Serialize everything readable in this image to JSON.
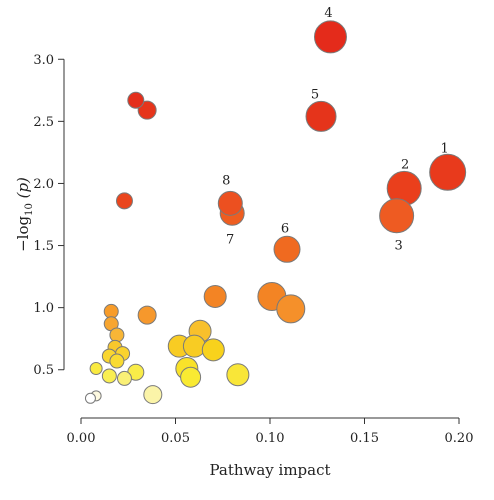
{
  "chart_data": {
    "type": "scatter",
    "title": "",
    "xlabel": "Pathway impact",
    "ylabel": {
      "prefix": "−log",
      "subscript": "10",
      "suffix": " (p)"
    },
    "xlim": [
      0.0,
      0.2
    ],
    "ylim": [
      0.2,
      3.3
    ],
    "xticks": [
      "0.00",
      "0.05",
      "0.10",
      "0.15",
      "0.20"
    ],
    "yticks": [
      "0.5",
      "1.0",
      "1.5",
      "2.0",
      "2.5",
      "3.0"
    ],
    "grid": false,
    "encoding": "Bubble color shades from pale yellow (low -log10 p) to red (high -log10 p); bubble size reflects pathway impact.",
    "points": [
      {
        "x": 0.194,
        "y": 2.09,
        "size": 18,
        "color": "#e83a1c",
        "label": "1"
      },
      {
        "x": 0.171,
        "y": 1.96,
        "size": 17,
        "color": "#ea3f1c",
        "label": "2"
      },
      {
        "x": 0.167,
        "y": 1.74,
        "size": 17,
        "color": "#ee5b22",
        "label": "3"
      },
      {
        "x": 0.132,
        "y": 3.18,
        "size": 16,
        "color": "#e42b1b",
        "label": "4"
      },
      {
        "x": 0.127,
        "y": 2.54,
        "size": 15,
        "color": "#e5341b",
        "label": "5"
      },
      {
        "x": 0.109,
        "y": 1.47,
        "size": 13,
        "color": "#f06a20",
        "label": "6"
      },
      {
        "x": 0.08,
        "y": 1.76,
        "size": 12,
        "color": "#ee5d20",
        "label": "7"
      },
      {
        "x": 0.079,
        "y": 1.84,
        "size": 12,
        "color": "#ec5020",
        "label": "8"
      },
      {
        "x": 0.029,
        "y": 2.67,
        "size": 8,
        "color": "#e42e1b"
      },
      {
        "x": 0.035,
        "y": 2.59,
        "size": 9,
        "color": "#e6351b"
      },
      {
        "x": 0.023,
        "y": 1.86,
        "size": 8,
        "color": "#ea451d"
      },
      {
        "x": 0.101,
        "y": 1.09,
        "size": 14,
        "color": "#f38424"
      },
      {
        "x": 0.111,
        "y": 0.99,
        "size": 14,
        "color": "#f5902a"
      },
      {
        "x": 0.071,
        "y": 1.09,
        "size": 11,
        "color": "#f38424"
      },
      {
        "x": 0.035,
        "y": 0.94,
        "size": 9,
        "color": "#f6982c"
      },
      {
        "x": 0.016,
        "y": 0.97,
        "size": 7,
        "color": "#f79c2a"
      },
      {
        "x": 0.016,
        "y": 0.87,
        "size": 7,
        "color": "#f7a530"
      },
      {
        "x": 0.019,
        "y": 0.78,
        "size": 7,
        "color": "#f8b636"
      },
      {
        "x": 0.063,
        "y": 0.81,
        "size": 11,
        "color": "#f8c02c"
      },
      {
        "x": 0.052,
        "y": 0.69,
        "size": 11,
        "color": "#f8cc23"
      },
      {
        "x": 0.06,
        "y": 0.69,
        "size": 11,
        "color": "#f8cc23"
      },
      {
        "x": 0.07,
        "y": 0.66,
        "size": 11,
        "color": "#f8d21c"
      },
      {
        "x": 0.018,
        "y": 0.68,
        "size": 7,
        "color": "#f9c82c"
      },
      {
        "x": 0.022,
        "y": 0.63,
        "size": 7,
        "color": "#f9d22e"
      },
      {
        "x": 0.015,
        "y": 0.61,
        "size": 7,
        "color": "#f9d630"
      },
      {
        "x": 0.019,
        "y": 0.57,
        "size": 7,
        "color": "#f9db32"
      },
      {
        "x": 0.056,
        "y": 0.51,
        "size": 11,
        "color": "#f9e22a"
      },
      {
        "x": 0.058,
        "y": 0.44,
        "size": 10,
        "color": "#f9ea32"
      },
      {
        "x": 0.083,
        "y": 0.46,
        "size": 11,
        "color": "#f9e638"
      },
      {
        "x": 0.008,
        "y": 0.51,
        "size": 6,
        "color": "#f9ea40"
      },
      {
        "x": 0.015,
        "y": 0.45,
        "size": 7,
        "color": "#f9ee52"
      },
      {
        "x": 0.029,
        "y": 0.48,
        "size": 8,
        "color": "#f9ec48"
      },
      {
        "x": 0.023,
        "y": 0.43,
        "size": 7,
        "color": "#faf076"
      },
      {
        "x": 0.038,
        "y": 0.3,
        "size": 9,
        "color": "#fbf4a8"
      },
      {
        "x": 0.008,
        "y": 0.29,
        "size": 5,
        "color": "#fdf9e0"
      },
      {
        "x": 0.005,
        "y": 0.27,
        "size": 5,
        "color": "#ffffff"
      }
    ]
  }
}
